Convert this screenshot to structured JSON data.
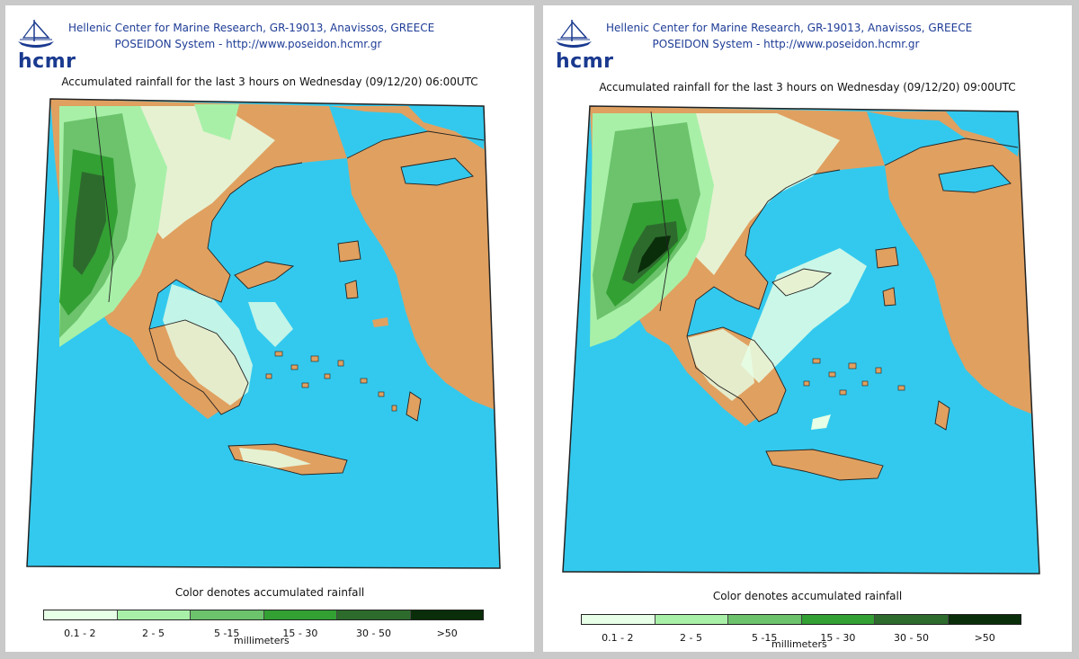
{
  "header": {
    "logo_text": "hcmr",
    "line1": "Hellenic Center for Marine Research, GR-19013, Anavissos, GREECE",
    "line2": "POSEIDON System - http://www.poseidon.hcmr.gr"
  },
  "colors": {
    "sea": "#33c9ee",
    "land": "#e0a060",
    "outline": "#222222",
    "rain_scale": [
      "#e6ffe6",
      "#a8f0a8",
      "#6cc36c",
      "#33a033",
      "#2d6b2d",
      "#0a2e0a"
    ]
  },
  "panels": [
    {
      "title": "Accumulated rainfall for the last 3 hours on Wednesday (09/12/20) 06:00UTC",
      "hour": "06:00"
    },
    {
      "title": "Accumulated rainfall for the last 3 hours on Wednesday (09/12/20) 09:00UTC",
      "hour": "09:00"
    }
  ],
  "legend": {
    "caption": "Color denotes accumulated rainfall",
    "unit": "millimeters",
    "labels": [
      "0.1 - 2",
      "2 - 5",
      "5 -15",
      "15 - 30",
      "30 - 50",
      ">50"
    ]
  }
}
